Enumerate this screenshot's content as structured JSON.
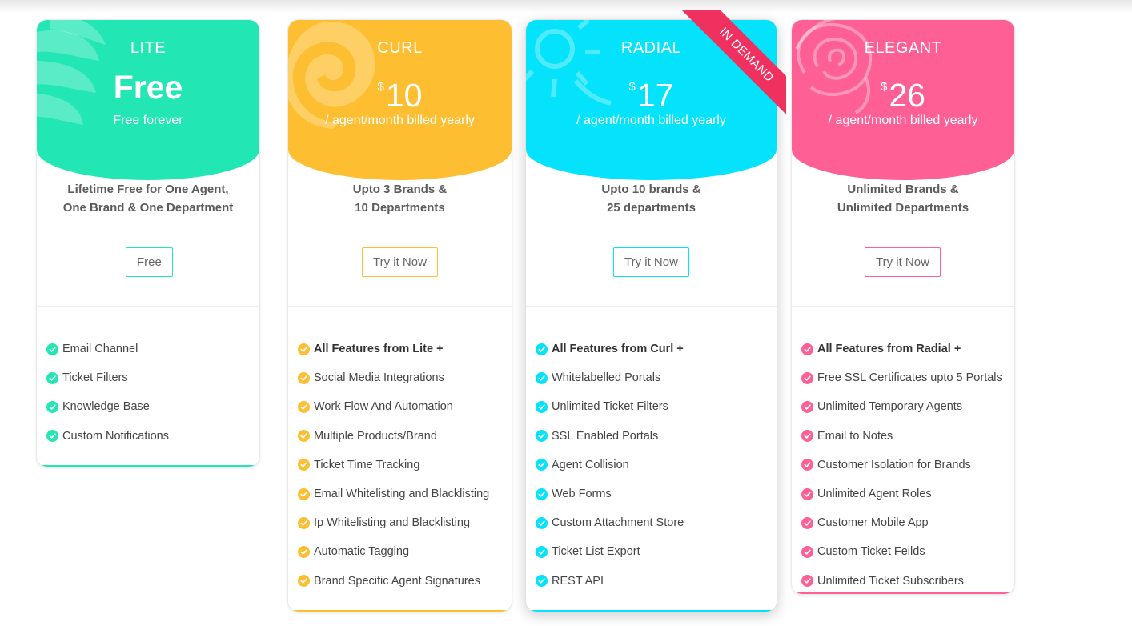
{
  "colors": {
    "lite": "#22e6b3",
    "curl": "#fdbf31",
    "radial": "#04e3fb",
    "elegant": "#fe5f95",
    "ribbon": "#f0305f"
  },
  "plans": [
    {
      "key": "lite",
      "name": "LITE",
      "currency": "",
      "price": "Free",
      "price_sub": "Free forever",
      "summary_line1": "Lifetime Free for One Agent,",
      "summary_line2": "One Brand & One Department",
      "button": "Free",
      "icon": "feather-icon",
      "features": [
        {
          "label": "Email Channel",
          "bold": false
        },
        {
          "label": "Ticket Filters",
          "bold": false
        },
        {
          "label": "Knowledge Base",
          "bold": false
        },
        {
          "label": "Custom Notifications",
          "bold": false
        }
      ]
    },
    {
      "key": "curl",
      "name": "CURL",
      "currency": "$",
      "price": "10",
      "price_sub": "/ agent/month billed yearly",
      "summary_line1": "Upto 3 Brands &",
      "summary_line2": "10 Departments",
      "button": "Try it Now",
      "icon": "shell-icon",
      "features": [
        {
          "label": "All Features from Lite +",
          "bold": true
        },
        {
          "label": "Social Media Integrations",
          "bold": false
        },
        {
          "label": "Work Flow And Automation",
          "bold": false
        },
        {
          "label": "Multiple Products/Brand",
          "bold": false
        },
        {
          "label": "Ticket Time Tracking",
          "bold": false
        },
        {
          "label": "Email Whitelisting and Blacklisting",
          "bold": false
        },
        {
          "label": "Ip Whitelisting and Blacklisting",
          "bold": false
        },
        {
          "label": "Automatic Tagging",
          "bold": false
        },
        {
          "label": "Brand Specific Agent Signatures",
          "bold": false
        }
      ]
    },
    {
      "key": "radial",
      "name": "RADIAL",
      "currency": "$",
      "price": "17",
      "price_sub": "/ agent/month billed yearly",
      "summary_line1": "Upto 10 brands &",
      "summary_line2": "25 departments",
      "button": "Try it Now",
      "ribbon": "IN DEMAND",
      "icon": "sun-icon",
      "features": [
        {
          "label": "All Features from Curl +",
          "bold": true
        },
        {
          "label": "Whitelabelled Portals",
          "bold": false
        },
        {
          "label": "Unlimited Ticket Filters",
          "bold": false
        },
        {
          "label": "SSL Enabled Portals",
          "bold": false
        },
        {
          "label": "Agent Collision",
          "bold": false
        },
        {
          "label": "Web Forms",
          "bold": false
        },
        {
          "label": "Custom Attachment Store",
          "bold": false
        },
        {
          "label": "Ticket List Export",
          "bold": false
        },
        {
          "label": "REST API",
          "bold": false
        }
      ]
    },
    {
      "key": "elegant",
      "name": "ELEGANT",
      "currency": "$",
      "price": "26",
      "price_sub": "/ agent/month billed yearly",
      "summary_line1": "Unlimited Brands &",
      "summary_line2": "Unlimited Departments",
      "button": "Try it Now",
      "icon": "rose-icon",
      "features": [
        {
          "label": "All Features from Radial +",
          "bold": true
        },
        {
          "label": "Free SSL Certificates upto 5 Portals",
          "bold": false
        },
        {
          "label": "Unlimited Temporary Agents",
          "bold": false
        },
        {
          "label": "Email to Notes",
          "bold": false
        },
        {
          "label": "Customer Isolation for Brands",
          "bold": false
        },
        {
          "label": "Unlimited Agent Roles",
          "bold": false
        },
        {
          "label": "Customer Mobile App",
          "bold": false
        },
        {
          "label": "Custom Ticket Feilds",
          "bold": false
        },
        {
          "label": "Unlimited Ticket Subscribers",
          "bold": false
        }
      ]
    }
  ]
}
